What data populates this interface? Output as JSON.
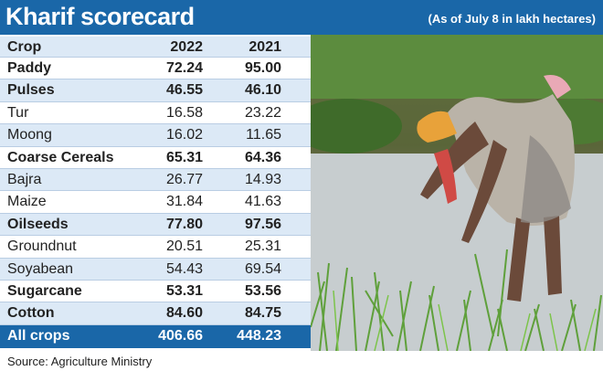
{
  "header": {
    "title": "Kharif scorecard",
    "note": "(As of July 8 in lakh hectares)"
  },
  "table": {
    "columns": [
      "Crop",
      "2022",
      "2021"
    ],
    "rows": [
      {
        "crop": "Paddy",
        "y2022": "72.24",
        "y2021": "95.00",
        "bold": true
      },
      {
        "crop": "Pulses",
        "y2022": "46.55",
        "y2021": "46.10",
        "bold": true
      },
      {
        "crop": "Tur",
        "y2022": "16.58",
        "y2021": "23.22",
        "bold": false
      },
      {
        "crop": "Moong",
        "y2022": "16.02",
        "y2021": "11.65",
        "bold": false
      },
      {
        "crop": "Coarse Cereals",
        "y2022": "65.31",
        "y2021": "64.36",
        "bold": true
      },
      {
        "crop": "Bajra",
        "y2022": "26.77",
        "y2021": "14.93",
        "bold": false
      },
      {
        "crop": "Maize",
        "y2022": "31.84",
        "y2021": "41.63",
        "bold": false
      },
      {
        "crop": "Oilseeds",
        "y2022": "77.80",
        "y2021": "97.56",
        "bold": true
      },
      {
        "crop": "Groundnut",
        "y2022": "20.51",
        "y2021": "25.31",
        "bold": false
      },
      {
        "crop": "Soyabean",
        "y2022": "54.43",
        "y2021": "69.54",
        "bold": false
      },
      {
        "crop": "Sugarcane",
        "y2022": "53.31",
        "y2021": "53.56",
        "bold": true
      },
      {
        "crop": "Cotton",
        "y2022": "84.60",
        "y2021": "84.75",
        "bold": true
      }
    ],
    "total": {
      "crop": "All crops",
      "y2022": "406.66",
      "y2021": "448.23"
    }
  },
  "source": "Source: Agriculture Ministry",
  "colors": {
    "brand": "#1a67a8",
    "row_alt": "#dce9f6"
  }
}
